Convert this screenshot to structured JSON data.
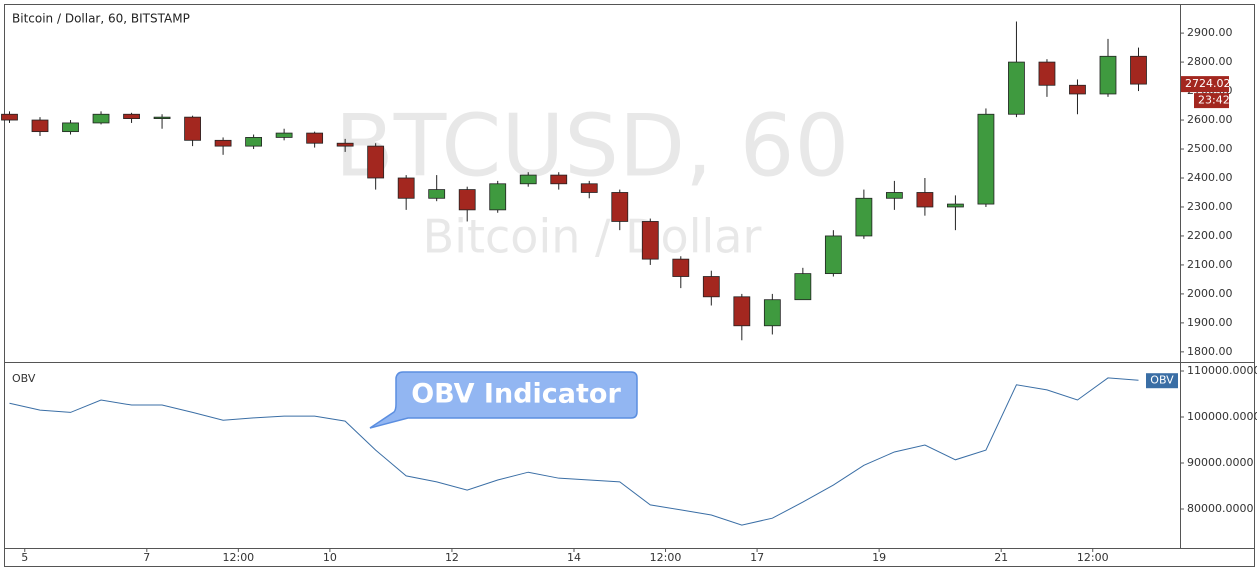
{
  "chart_data": [
    {
      "type": "candlestick",
      "title": "Bitcoin / Dollar, 60, BITSTAMP",
      "watermark": "BTCUSD, 60",
      "watermark_subtitle": "Bitcoin / Dollar",
      "up_color": "#3f9a3f",
      "down_color": "#a3271f",
      "grid": false,
      "x": [
        4.75,
        5.25,
        5.75,
        6.25,
        6.75,
        7.25,
        7.75,
        8.25,
        8.75,
        9.25,
        9.75,
        10.25,
        10.75,
        11.25,
        11.75,
        12.25,
        12.75,
        13.25,
        13.75,
        14.25,
        14.75,
        15.25,
        15.75,
        16.25,
        16.75,
        17.25,
        17.75,
        18.25,
        18.75,
        19.25,
        19.75,
        20.25,
        20.75,
        21.25,
        21.75,
        22.25,
        22.75,
        23.25
      ],
      "open": [
        2620,
        2600,
        2560,
        2590,
        2620,
        2605,
        2610,
        2530,
        2510,
        2540,
        2555,
        2520,
        2510,
        2400,
        2330,
        2360,
        2290,
        2380,
        2410,
        2380,
        2350,
        2250,
        2120,
        2060,
        1990,
        1890,
        1980,
        2070,
        2200,
        2330,
        2350,
        2300,
        2310,
        2620,
        2800,
        2720,
        2690,
        2820
      ],
      "high": [
        2630,
        2610,
        2600,
        2630,
        2625,
        2620,
        2615,
        2540,
        2550,
        2570,
        2560,
        2535,
        2520,
        2410,
        2410,
        2370,
        2390,
        2420,
        2420,
        2390,
        2360,
        2260,
        2130,
        2080,
        2000,
        2000,
        2090,
        2220,
        2360,
        2390,
        2400,
        2340,
        2640,
        2940,
        2810,
        2740,
        2880,
        2850
      ],
      "low": [
        2590,
        2545,
        2550,
        2585,
        2590,
        2570,
        2510,
        2480,
        2500,
        2530,
        2505,
        2490,
        2360,
        2290,
        2320,
        2250,
        2280,
        2370,
        2360,
        2330,
        2220,
        2100,
        2020,
        1960,
        1840,
        1860,
        1980,
        2060,
        2190,
        2290,
        2270,
        2220,
        2300,
        2610,
        2680,
        2620,
        2680,
        2700
      ],
      "close": [
        2600,
        2560,
        2590,
        2620,
        2605,
        2610,
        2530,
        2510,
        2540,
        2555,
        2520,
        2510,
        2400,
        2330,
        2360,
        2290,
        2380,
        2410,
        2380,
        2350,
        2250,
        2120,
        2060,
        1990,
        1890,
        1980,
        2070,
        2200,
        2330,
        2350,
        2300,
        2310,
        2620,
        2800,
        2720,
        2690,
        2820,
        2724.02
      ],
      "last_price": 2724.02,
      "countdown": "23:42",
      "xlim": [
        4.66,
        23.93
      ],
      "ylim": [
        1765,
        2997
      ],
      "yticks": [
        {
          "value": 1800,
          "label": "1800.00"
        },
        {
          "value": 1900,
          "label": "1900.00"
        },
        {
          "value": 2000,
          "label": "2000.00"
        },
        {
          "value": 2100,
          "label": "2100.00"
        },
        {
          "value": 2200,
          "label": "2200.00"
        },
        {
          "value": 2300,
          "label": "2300.00"
        },
        {
          "value": 2400,
          "label": "2400.00"
        },
        {
          "value": 2500,
          "label": "2500.00"
        },
        {
          "value": 2600,
          "label": "2600.00"
        },
        {
          "value": 2700,
          "label": "2700.00"
        },
        {
          "value": 2800,
          "label": "2800.00"
        },
        {
          "value": 2900,
          "label": "2900.00"
        }
      ]
    },
    {
      "type": "line",
      "title": "OBV",
      "annotation": "OBV Indicator",
      "grid": false,
      "x": [
        4.75,
        5.25,
        5.75,
        6.25,
        6.75,
        7.25,
        7.75,
        8.25,
        8.75,
        9.25,
        9.75,
        10.25,
        10.75,
        11.25,
        11.75,
        12.25,
        12.75,
        13.25,
        13.75,
        14.25,
        14.75,
        15.25,
        15.75,
        16.25,
        16.75,
        17.25,
        17.75,
        18.25,
        18.75,
        19.25,
        19.75,
        20.25,
        20.75,
        21.25,
        21.75,
        22.25,
        22.75,
        23.25
      ],
      "series": [
        {
          "name": "OBV",
          "color": "#3a6ea5",
          "values": [
            103000,
            101500,
            101000,
            103700,
            102600,
            102600,
            101000,
            99300,
            99800,
            100200,
            100200,
            99100,
            92800,
            87200,
            85900,
            84100,
            86300,
            88000,
            86700,
            86300,
            85900,
            80900,
            79800,
            78700,
            76500,
            78000,
            81500,
            85200,
            89500,
            92400,
            93900,
            90700,
            92800,
            107000,
            105900,
            103700,
            108500,
            108000
          ]
        }
      ],
      "xlim": [
        4.66,
        23.93
      ],
      "ylim": [
        71520,
        111960
      ],
      "yticks": [
        {
          "value": 80000,
          "label": "80000.0000"
        },
        {
          "value": 90000,
          "label": "90000.0000"
        },
        {
          "value": 100000,
          "label": "100000.0000"
        },
        {
          "value": 110000,
          "label": "110000.0000"
        }
      ],
      "xticks": [
        {
          "value": 5,
          "label": "5"
        },
        {
          "value": 7,
          "label": "7"
        },
        {
          "value": 8.5,
          "label": "12:00"
        },
        {
          "value": 10,
          "label": "10"
        },
        {
          "value": 12,
          "label": "12"
        },
        {
          "value": 14,
          "label": "14"
        },
        {
          "value": 15.5,
          "label": "12:00"
        },
        {
          "value": 17,
          "label": "17"
        },
        {
          "value": 19,
          "label": "19"
        },
        {
          "value": 21,
          "label": "21"
        },
        {
          "value": 22.5,
          "label": "12:00"
        }
      ]
    }
  ]
}
